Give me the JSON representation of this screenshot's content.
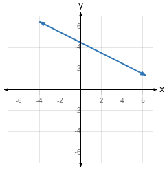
{
  "chart_data": {
    "type": "line",
    "x": [
      -4,
      6.3
    ],
    "values": [
      6.5,
      1.35
    ],
    "color": "#2e75b6",
    "xlabel": "x",
    "ylabel": "y",
    "xlim": [
      -7,
      7
    ],
    "ylim": [
      -7,
      7
    ],
    "xticks": [
      -6,
      -4,
      -2,
      2,
      4,
      6
    ],
    "yticks": [
      -6,
      -4,
      -2,
      2,
      4,
      6
    ],
    "grid": true
  }
}
